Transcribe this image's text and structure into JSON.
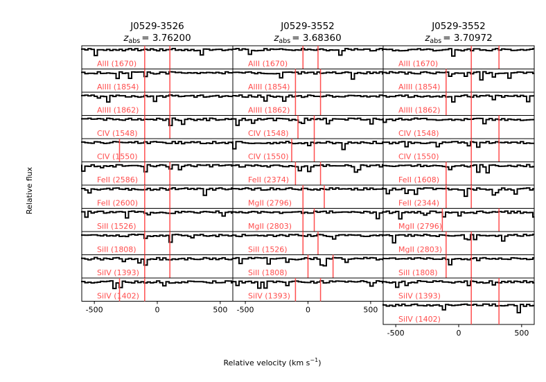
{
  "texts": {
    "ylabel": "Relative flux",
    "xlabel": "Relative velocity (km s",
    "xlabel_sup": "−1",
    "xlabel_end": ")"
  },
  "colors": {
    "spectrum": "#000000",
    "marker": "#ff4d4d",
    "label": "#ff4d4d"
  },
  "chart_data": [
    {
      "type": "line",
      "title": "J0529-3526",
      "subtitle_prefix": "z",
      "subtitle_sub": "abs",
      "subtitle_value": "= 3.76200",
      "xlim": [
        -600,
        600
      ],
      "xticks": [
        -500,
        0,
        500
      ],
      "xticklabels": [
        "-500",
        "0",
        "500"
      ],
      "panels": [
        {
          "label": "AlII (1670)",
          "markers": [
            -100,
            100
          ]
        },
        {
          "label": "AlIII (1854)",
          "markers": [
            -100,
            100
          ]
        },
        {
          "label": "AlIII (1862)",
          "markers": [
            -100,
            100
          ]
        },
        {
          "label": "CIV (1548)",
          "markers": [
            -100,
            100
          ]
        },
        {
          "label": "CIV (1550)",
          "markers": [
            -300,
            -100
          ]
        },
        {
          "label": "FeII (2586)",
          "markers": [
            -100,
            100
          ]
        },
        {
          "label": "FeII (2600)",
          "markers": [
            -100,
            100
          ]
        },
        {
          "label": "SiII (1526)",
          "markers": [
            -100,
            100
          ]
        },
        {
          "label": "SiII (1808)",
          "markers": [
            -100,
            100
          ]
        },
        {
          "label": "SiIV (1393)",
          "markers": [
            -100,
            100
          ]
        },
        {
          "label": "SiIV (1402)",
          "markers": [
            -300,
            -100
          ]
        }
      ]
    },
    {
      "type": "line",
      "title": "J0529-3552",
      "subtitle_prefix": "z",
      "subtitle_sub": "abs",
      "subtitle_value": "= 3.68360",
      "xlim": [
        -600,
        600
      ],
      "xticks": [
        -500,
        0,
        500
      ],
      "xticklabels": [
        "-500",
        "0",
        "500"
      ],
      "panels": [
        {
          "label": "AlII (1670)",
          "markers": [
            -40,
            80
          ]
        },
        {
          "label": "AlIII (1854)",
          "markers": [
            -100,
            100
          ]
        },
        {
          "label": "AlIII (1862)",
          "markers": [
            -100,
            100
          ]
        },
        {
          "label": "CIV (1548)",
          "markers": [
            -80,
            50
          ]
        },
        {
          "label": "CIV (1550)",
          "markers": [
            -130,
            50
          ]
        },
        {
          "label": "FeII (2374)",
          "markers": [
            -100,
            100
          ]
        },
        {
          "label": "MgII (2796)",
          "markers": [
            -40,
            130
          ]
        },
        {
          "label": "MgII (2803)",
          "markers": [
            -40,
            50
          ]
        },
        {
          "label": "SiII (1526)",
          "markers": [
            -40,
            80
          ]
        },
        {
          "label": "SiII (1808)",
          "markers": [
            0,
            200
          ]
        },
        {
          "label": "SiIV (1393)",
          "markers": [
            -100,
            100
          ]
        }
      ]
    },
    {
      "type": "line",
      "title": "J0529-3552",
      "subtitle_prefix": "z",
      "subtitle_sub": "abs",
      "subtitle_value": "= 3.70972",
      "xlim": [
        -600,
        600
      ],
      "xticks": [
        -500,
        0,
        500
      ],
      "xticklabels": [
        "-500",
        "0",
        "500"
      ],
      "panels": [
        {
          "label": "AlII (1670)",
          "markers": [
            100,
            320
          ]
        },
        {
          "label": "AlIII (1854)",
          "markers": [
            -100,
            100
          ]
        },
        {
          "label": "AlIII (1862)",
          "markers": [
            -100,
            100
          ]
        },
        {
          "label": "CIV (1548)",
          "markers": [
            100,
            320
          ]
        },
        {
          "label": "CIV (1550)",
          "markers": [
            100,
            320
          ]
        },
        {
          "label": "FeII (1608)",
          "markers": [
            -100,
            100
          ]
        },
        {
          "label": "FeII (2344)",
          "markers": [
            -100,
            100
          ]
        },
        {
          "label": "MgII (2796)",
          "markers": [
            -130,
            320
          ]
        },
        {
          "label": "MgII (2803)",
          "markers": [
            -100,
            100
          ]
        },
        {
          "label": "SiII (1808)",
          "markers": [
            -100,
            100
          ]
        },
        {
          "label": "SiIV (1393)",
          "markers": [
            100,
            320
          ]
        },
        {
          "label": "SiIV (1402)",
          "markers": [
            100,
            320
          ]
        }
      ]
    }
  ]
}
